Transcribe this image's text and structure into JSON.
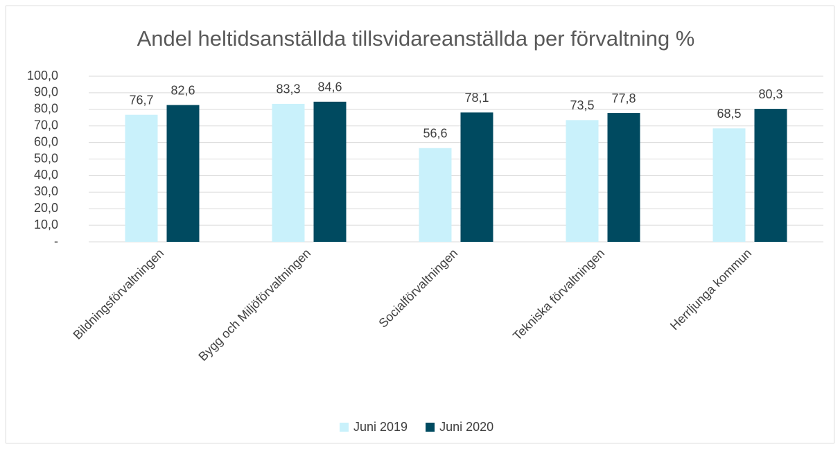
{
  "chart_data": {
    "type": "bar",
    "title": "Andel heltidsanställda tillsvidareanställda per förvaltning %",
    "categories": [
      "Bildningsförvaltningen",
      "Bygg och Miljöförvaltningen",
      "Socialförvaltningen",
      "Tekniska förvaltningen",
      "Herrljunga kommun"
    ],
    "series": [
      {
        "name": "Juni 2019",
        "color": "#c9f1fb",
        "values": [
          76.7,
          83.3,
          56.6,
          73.5,
          68.5
        ],
        "value_labels": [
          "76,7",
          "83,3",
          "56,6",
          "73,5",
          "68,5"
        ]
      },
      {
        "name": "Juni 2020",
        "color": "#004a60",
        "values": [
          82.6,
          84.6,
          78.1,
          77.8,
          80.3
        ],
        "value_labels": [
          "82,6",
          "84,6",
          "78,1",
          "77,8",
          "80,3"
        ]
      }
    ],
    "ylim": [
      0,
      100
    ],
    "yticks": [
      {
        "value": 0,
        "label": "-"
      },
      {
        "value": 10,
        "label": "10,0"
      },
      {
        "value": 20,
        "label": "20,0"
      },
      {
        "value": 30,
        "label": "30,0"
      },
      {
        "value": 40,
        "label": "40,0"
      },
      {
        "value": 50,
        "label": "50,0"
      },
      {
        "value": 60,
        "label": "60,0"
      },
      {
        "value": 70,
        "label": "70,0"
      },
      {
        "value": 80,
        "label": "80,0"
      },
      {
        "value": 90,
        "label": "90,0"
      },
      {
        "value": 100,
        "label": "100,0"
      }
    ],
    "grid": true,
    "legend": "bottom"
  }
}
